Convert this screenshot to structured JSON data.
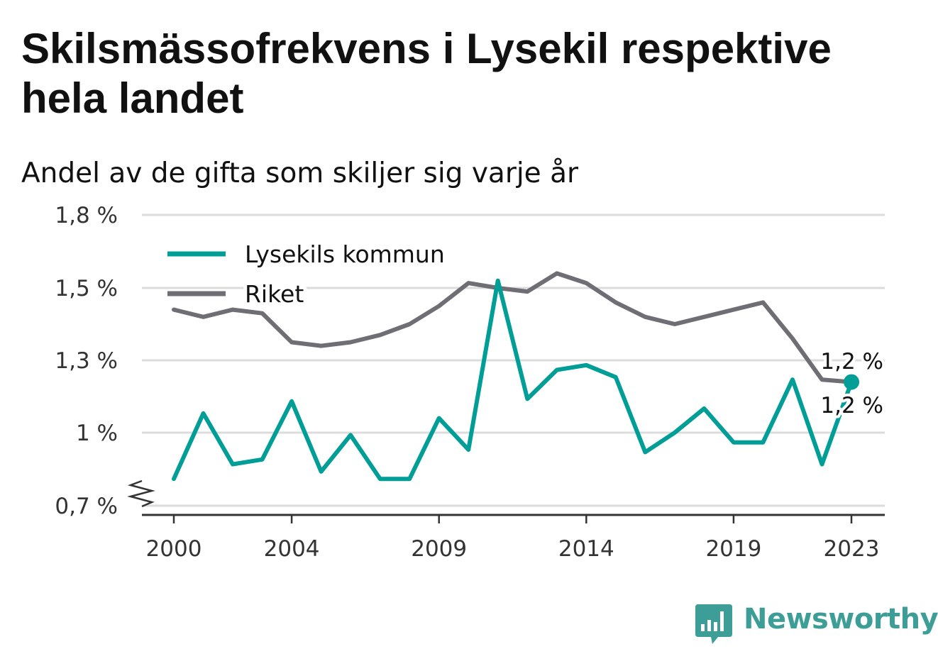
{
  "title": "Skilsmässofrekvens i Lysekil respektive hela landet",
  "subtitle": "Andel av de gifta som skiljer sig varje år",
  "brand": {
    "name": "Newsworthy",
    "icon": "bar-chart-speech-bubble-icon",
    "color": "#3d9e97"
  },
  "chart_data": {
    "type": "line",
    "x": [
      2000,
      2001,
      2002,
      2003,
      2004,
      2005,
      2006,
      2007,
      2008,
      2009,
      2010,
      2011,
      2012,
      2013,
      2014,
      2015,
      2016,
      2017,
      2018,
      2019,
      2020,
      2021,
      2022,
      2023
    ],
    "x_ticks": [
      2000,
      2004,
      2009,
      2014,
      2019,
      2023
    ],
    "x_tick_labels": [
      "2000",
      "2004",
      "2009",
      "2014",
      "2019",
      "2023"
    ],
    "y_ticks": [
      0.7,
      1.0,
      1.3,
      1.5,
      1.8
    ],
    "y_tick_labels": [
      "0,7 %",
      "1 %",
      "1,3 %",
      "1,5 %",
      "1,8 %"
    ],
    "y_axis_break": true,
    "grid": true,
    "legend_position": "top-left",
    "series": [
      {
        "name": "Lysekils kommun",
        "color": "#009e96",
        "values": [
          0.81,
          1.08,
          0.87,
          0.89,
          1.13,
          0.84,
          0.99,
          0.81,
          0.81,
          1.06,
          0.93,
          1.53,
          1.14,
          1.26,
          1.28,
          1.23,
          0.92,
          1.0,
          1.1,
          0.96,
          0.96,
          1.22,
          0.87,
          1.21
        ],
        "end_label": "1,2 %"
      },
      {
        "name": "Riket",
        "color": "#6f6e75",
        "values": [
          1.44,
          1.42,
          1.44,
          1.43,
          1.35,
          1.34,
          1.35,
          1.37,
          1.4,
          1.45,
          1.52,
          1.5,
          1.49,
          1.56,
          1.52,
          1.46,
          1.42,
          1.4,
          1.42,
          1.44,
          1.46,
          1.36,
          1.22,
          1.21
        ],
        "end_label": "1,2 %"
      }
    ]
  }
}
